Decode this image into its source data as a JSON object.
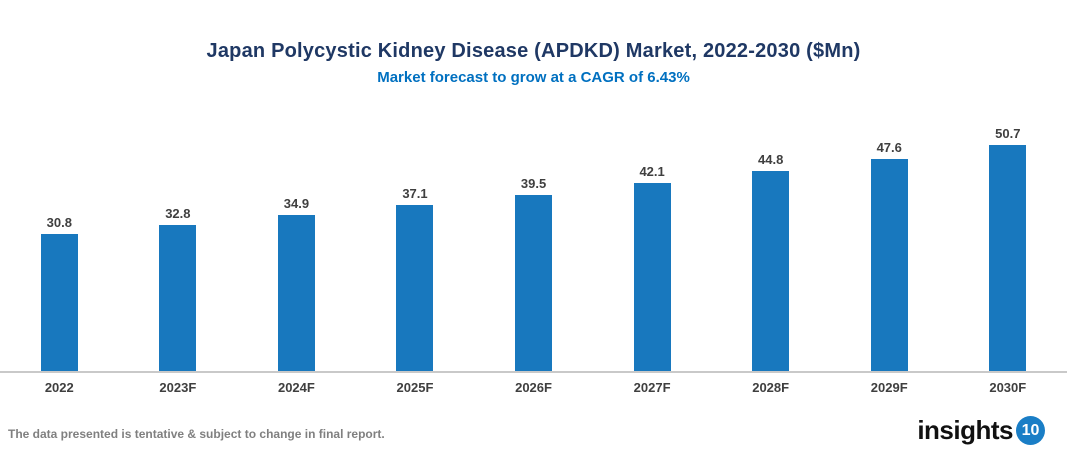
{
  "header": {
    "title": "Japan Polycystic Kidney Disease (APDKD) Market, 2022-2030 ($Mn)",
    "subtitle": "Market forecast to grow at a CAGR of 6.43%",
    "title_color": "#1f3864",
    "subtitle_color": "#0070c0"
  },
  "chart_data": {
    "type": "bar",
    "title": "Japan Polycystic Kidney Disease (APDKD) Market, 2022-2030 ($Mn)",
    "subtitle": "Market forecast to grow at a CAGR of 6.43%",
    "categories": [
      "2022",
      "2023F",
      "2024F",
      "2025F",
      "2026F",
      "2027F",
      "2028F",
      "2029F",
      "2030F"
    ],
    "values": [
      30.8,
      32.8,
      34.9,
      37.1,
      39.5,
      42.1,
      44.8,
      47.6,
      50.7
    ],
    "xlabel": "",
    "ylabel": "",
    "ylim": [
      0,
      52
    ],
    "grid": false,
    "legend": "none",
    "value_labels": true,
    "bar_color": "#1878be",
    "label_color": "#3f3f3f",
    "axis_line_color": "#c9c9c9"
  },
  "footer": {
    "disclaimer": "The data presented is tentative & subject to change in final report.",
    "logo_text": "insights",
    "logo_badge": "10",
    "logo_badge_color": "#1a7ec6"
  }
}
